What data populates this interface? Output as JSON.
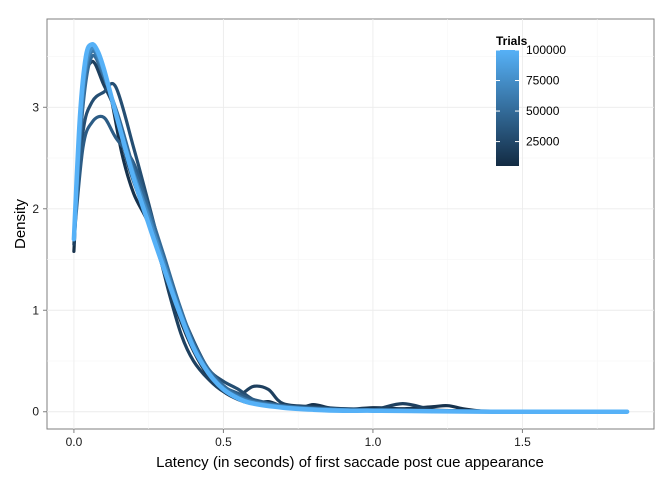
{
  "chart_data": {
    "type": "line",
    "xlabel": "Latency (in seconds) of first saccade post cue appearance",
    "ylabel": "Density",
    "xlim": [
      -0.09,
      1.94
    ],
    "ylim": [
      -0.17,
      3.87
    ],
    "xticks": [
      0.0,
      0.5,
      1.0,
      1.5
    ],
    "xtick_labels": [
      "0.0",
      "0.5",
      "1.0",
      "1.5"
    ],
    "yticks": [
      0,
      1,
      2,
      3
    ],
    "ytick_labels": [
      "0",
      "1",
      "2",
      "3"
    ],
    "grid": true,
    "legend": {
      "title": "Trials",
      "placement": "top-right",
      "type": "colorbar",
      "range": [
        5000,
        100000
      ],
      "ticks": [
        25000,
        50000,
        75000,
        100000
      ],
      "tick_labels": [
        "25000",
        "50000",
        "75000",
        "100000"
      ],
      "color_low": "#132b43",
      "color_high": "#56b1f7"
    },
    "series": [
      {
        "trials": 10000,
        "x": [
          0,
          0.03,
          0.06,
          0.09,
          0.12,
          0.16,
          0.2,
          0.25,
          0.3,
          0.35,
          0.4,
          0.45,
          0.5,
          0.55,
          0.6,
          0.65,
          0.7,
          0.75,
          0.8,
          0.85,
          0.9,
          1.0,
          1.1,
          1.2,
          1.25,
          1.3,
          1.35,
          1.4,
          1.6,
          1.85
        ],
        "y": [
          1.58,
          3.25,
          3.62,
          3.35,
          3.15,
          2.55,
          2.15,
          1.85,
          1.4,
          0.95,
          0.6,
          0.35,
          0.2,
          0.12,
          0.08,
          0.1,
          0.05,
          0.03,
          0.07,
          0.04,
          0.02,
          0.04,
          0.03,
          0.05,
          0.06,
          0.03,
          0.01,
          0,
          0,
          0
        ]
      },
      {
        "trials": 20000,
        "x": [
          0,
          0.03,
          0.06,
          0.1,
          0.14,
          0.18,
          0.22,
          0.28,
          0.32,
          0.36,
          0.4,
          0.45,
          0.5,
          0.55,
          0.6,
          0.65,
          0.7,
          0.8,
          0.9,
          1.0,
          1.1,
          1.2,
          1.3,
          1.6,
          1.85
        ],
        "y": [
          1.65,
          3.1,
          3.45,
          3.22,
          2.95,
          2.45,
          2.1,
          1.6,
          1.15,
          0.75,
          0.5,
          0.32,
          0.2,
          0.16,
          0.25,
          0.22,
          0.08,
          0.05,
          0.03,
          0.02,
          0.08,
          0.02,
          0.01,
          0,
          0
        ]
      },
      {
        "trials": 30000,
        "x": [
          0,
          0.03,
          0.06,
          0.1,
          0.14,
          0.2,
          0.25,
          0.3,
          0.35,
          0.4,
          0.45,
          0.5,
          0.55,
          0.6,
          0.65,
          0.7,
          0.8,
          0.9,
          1.0,
          1.1,
          1.2,
          1.4,
          1.85
        ],
        "y": [
          1.75,
          2.75,
          3.05,
          3.15,
          3.2,
          2.6,
          2.05,
          1.5,
          1.05,
          0.7,
          0.42,
          0.3,
          0.22,
          0.12,
          0.08,
          0.05,
          0.02,
          0.03,
          0.02,
          0.02,
          0.01,
          0,
          0
        ]
      },
      {
        "trials": 40000,
        "x": [
          0,
          0.03,
          0.06,
          0.1,
          0.14,
          0.2,
          0.25,
          0.3,
          0.35,
          0.4,
          0.45,
          0.5,
          0.55,
          0.6,
          0.7,
          0.8,
          0.9,
          1.0,
          1.2,
          1.4,
          1.85
        ],
        "y": [
          1.7,
          2.6,
          2.85,
          2.9,
          2.7,
          2.45,
          2.0,
          1.5,
          1.05,
          0.65,
          0.4,
          0.25,
          0.18,
          0.12,
          0.06,
          0.04,
          0.02,
          0.01,
          0.01,
          0,
          0
        ]
      },
      {
        "trials": 50000,
        "x": [
          0,
          0.03,
          0.06,
          0.1,
          0.15,
          0.2,
          0.25,
          0.3,
          0.35,
          0.4,
          0.45,
          0.5,
          0.55,
          0.6,
          0.7,
          0.8,
          0.9,
          1.0,
          1.2,
          1.4,
          1.85
        ],
        "y": [
          1.72,
          3.0,
          3.5,
          3.3,
          2.9,
          2.4,
          2.0,
          1.55,
          1.08,
          0.68,
          0.42,
          0.26,
          0.16,
          0.1,
          0.06,
          0.03,
          0.02,
          0.01,
          0.01,
          0,
          0
        ]
      },
      {
        "trials": 60000,
        "x": [
          0,
          0.03,
          0.06,
          0.1,
          0.15,
          0.2,
          0.25,
          0.3,
          0.35,
          0.4,
          0.45,
          0.5,
          0.55,
          0.6,
          0.7,
          0.8,
          0.9,
          1.0,
          1.2,
          1.4,
          1.85
        ],
        "y": [
          1.7,
          3.1,
          3.55,
          3.32,
          2.85,
          2.35,
          1.95,
          1.5,
          1.05,
          0.66,
          0.4,
          0.24,
          0.15,
          0.1,
          0.05,
          0.03,
          0.02,
          0.01,
          0.01,
          0,
          0
        ]
      },
      {
        "trials": 75000,
        "x": [
          0,
          0.03,
          0.06,
          0.1,
          0.15,
          0.2,
          0.25,
          0.3,
          0.35,
          0.4,
          0.45,
          0.5,
          0.55,
          0.6,
          0.7,
          0.8,
          0.9,
          1.0,
          1.2,
          1.4,
          1.85
        ],
        "y": [
          1.7,
          3.15,
          3.58,
          3.35,
          2.85,
          2.35,
          1.92,
          1.48,
          1.03,
          0.65,
          0.39,
          0.23,
          0.14,
          0.09,
          0.05,
          0.03,
          0.02,
          0.01,
          0.01,
          0,
          0
        ]
      },
      {
        "trials": 100000,
        "x": [
          0,
          0.02,
          0.04,
          0.06,
          0.08,
          0.1,
          0.13,
          0.16,
          0.2,
          0.25,
          0.3,
          0.35,
          0.4,
          0.45,
          0.5,
          0.55,
          0.6,
          0.7,
          0.8,
          0.9,
          1.0,
          1.2,
          1.4,
          1.6,
          1.85
        ],
        "y": [
          1.7,
          2.9,
          3.5,
          3.62,
          3.55,
          3.38,
          3.05,
          2.72,
          2.3,
          1.85,
          1.42,
          1.0,
          0.63,
          0.38,
          0.22,
          0.13,
          0.08,
          0.04,
          0.02,
          0.01,
          0.01,
          0.005,
          0,
          0,
          0
        ]
      }
    ]
  }
}
